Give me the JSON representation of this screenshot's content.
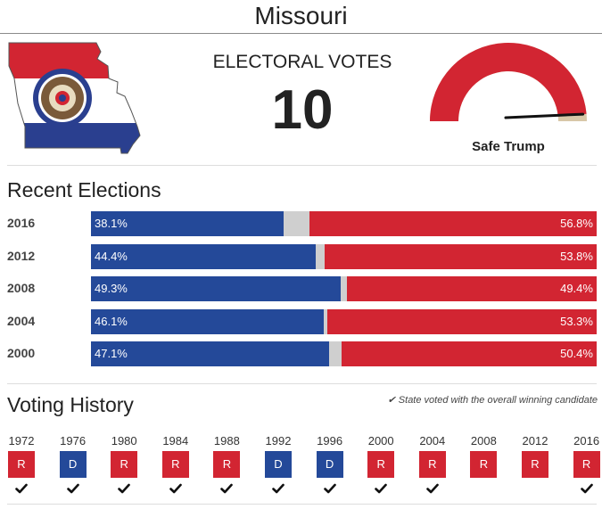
{
  "header": {
    "title": "Missouri"
  },
  "electoral": {
    "label": "ELECTORAL VOTES",
    "value": "10"
  },
  "rating": {
    "label": "Safe Trump",
    "level_fraction": 0.97
  },
  "colors": {
    "dem": "#244999",
    "rep": "#d22532",
    "other": "#cfcfcf",
    "gauge_rest": "#d8c7a8"
  },
  "recent": {
    "title": "Recent Elections",
    "rows": [
      {
        "year": "2016",
        "dem": 38.1,
        "rep": 56.8,
        "dem_label": "38.1%",
        "rep_label": "56.8%"
      },
      {
        "year": "2012",
        "dem": 44.4,
        "rep": 53.8,
        "dem_label": "44.4%",
        "rep_label": "53.8%"
      },
      {
        "year": "2008",
        "dem": 49.3,
        "rep": 49.4,
        "dem_label": "49.3%",
        "rep_label": "49.4%"
      },
      {
        "year": "2004",
        "dem": 46.1,
        "rep": 53.3,
        "dem_label": "46.1%",
        "rep_label": "53.3%"
      },
      {
        "year": "2000",
        "dem": 47.1,
        "rep": 50.4,
        "dem_label": "47.1%",
        "rep_label": "50.4%"
      }
    ]
  },
  "history": {
    "title": "Voting History",
    "note": "State voted with the overall winning candidate",
    "items": [
      {
        "year": "1972",
        "party": "R",
        "winner": true
      },
      {
        "year": "1976",
        "party": "D",
        "winner": true
      },
      {
        "year": "1980",
        "party": "R",
        "winner": true
      },
      {
        "year": "1984",
        "party": "R",
        "winner": true
      },
      {
        "year": "1988",
        "party": "R",
        "winner": true
      },
      {
        "year": "1992",
        "party": "D",
        "winner": true
      },
      {
        "year": "1996",
        "party": "D",
        "winner": true
      },
      {
        "year": "2000",
        "party": "R",
        "winner": true
      },
      {
        "year": "2004",
        "party": "R",
        "winner": true
      },
      {
        "year": "2008",
        "party": "R",
        "winner": false
      },
      {
        "year": "2012",
        "party": "R",
        "winner": false
      },
      {
        "year": "2016",
        "party": "R",
        "winner": true
      }
    ]
  }
}
